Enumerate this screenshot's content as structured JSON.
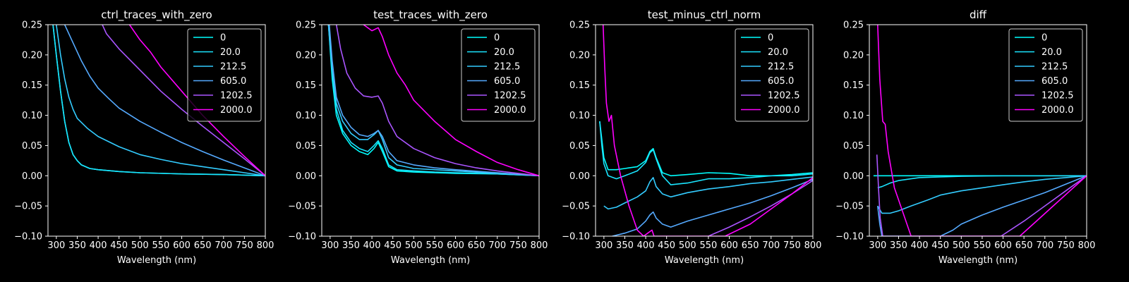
{
  "chart_data": [
    {
      "type": "line",
      "title": "ctrl_traces_with_zero",
      "xlabel": "Wavelength (nm)",
      "ylabel": "",
      "xlim": [
        280,
        800
      ],
      "ylim": [
        -0.1,
        0.25
      ],
      "xticks": [
        "300",
        "350",
        "400",
        "450",
        "500",
        "550",
        "600",
        "650",
        "700",
        "750",
        "800"
      ],
      "yticks": [
        "−0.10",
        "−0.05",
        "0.00",
        "0.05",
        "0.10",
        "0.15",
        "0.20",
        "0.25"
      ],
      "legend_position": "top-right",
      "series": [
        {
          "name": "0",
          "color": "#00ffff",
          "x": [
            292,
            300,
            310,
            320,
            330,
            340,
            350,
            360,
            380,
            400,
            450,
            500,
            600,
            700,
            800
          ],
          "y": [
            0.25,
            0.2,
            0.14,
            0.09,
            0.055,
            0.035,
            0.025,
            0.018,
            0.012,
            0.01,
            0.007,
            0.005,
            0.003,
            0.002,
            0.0
          ]
        },
        {
          "name": "20.0",
          "color": "#1ae5ff",
          "x": [
            292,
            300,
            310,
            320,
            330,
            340,
            350,
            360,
            380,
            400,
            450,
            500,
            600,
            700,
            800
          ],
          "y": [
            0.25,
            0.2,
            0.14,
            0.09,
            0.055,
            0.035,
            0.025,
            0.018,
            0.012,
            0.01,
            0.007,
            0.005,
            0.003,
            0.002,
            0.0
          ]
        },
        {
          "name": "212.5",
          "color": "#33ccff",
          "x": [
            300,
            310,
            320,
            330,
            340,
            350,
            375,
            400,
            450,
            500,
            550,
            600,
            650,
            700,
            750,
            800
          ],
          "y": [
            0.25,
            0.2,
            0.16,
            0.13,
            0.11,
            0.095,
            0.078,
            0.065,
            0.048,
            0.035,
            0.027,
            0.02,
            0.015,
            0.01,
            0.005,
            0.0
          ]
        },
        {
          "name": "605.0",
          "color": "#55aaff",
          "x": [
            320,
            340,
            360,
            380,
            400,
            425,
            450,
            500,
            550,
            600,
            650,
            700,
            750,
            800
          ],
          "y": [
            0.25,
            0.22,
            0.19,
            0.165,
            0.145,
            0.128,
            0.112,
            0.09,
            0.072,
            0.055,
            0.04,
            0.026,
            0.013,
            0.0
          ]
        },
        {
          "name": "1202.5",
          "color": "#aa55ff",
          "x": [
            410,
            420,
            450,
            500,
            550,
            600,
            650,
            700,
            750,
            800
          ],
          "y": [
            0.25,
            0.235,
            0.21,
            0.175,
            0.14,
            0.11,
            0.082,
            0.055,
            0.028,
            0.0
          ]
        },
        {
          "name": "2000.0",
          "color": "#ff00ff",
          "x": [
            475,
            500,
            525,
            550,
            600,
            650,
            700,
            750,
            800
          ],
          "y": [
            0.25,
            0.225,
            0.205,
            0.18,
            0.14,
            0.1,
            0.065,
            0.032,
            0.0
          ]
        }
      ]
    },
    {
      "type": "line",
      "title": "test_traces_with_zero",
      "xlabel": "Wavelength (nm)",
      "ylabel": "",
      "xlim": [
        280,
        800
      ],
      "ylim": [
        -0.1,
        0.25
      ],
      "xticks": [
        "300",
        "350",
        "400",
        "450",
        "500",
        "550",
        "600",
        "650",
        "700",
        "750",
        "800"
      ],
      "yticks": [
        "−0.10",
        "−0.05",
        "0.00",
        "0.05",
        "0.10",
        "0.15",
        "0.20",
        "0.25"
      ],
      "legend_position": "top-right",
      "series": [
        {
          "name": "0",
          "color": "#00ffff",
          "x": [
            296,
            305,
            315,
            330,
            350,
            370,
            390,
            405,
            415,
            425,
            440,
            460,
            500,
            550,
            600,
            700,
            800
          ],
          "y": [
            0.25,
            0.16,
            0.1,
            0.07,
            0.05,
            0.04,
            0.035,
            0.045,
            0.055,
            0.04,
            0.015,
            0.008,
            0.006,
            0.005,
            0.004,
            0.003,
            0.0
          ]
        },
        {
          "name": "20.0",
          "color": "#1ae5ff",
          "x": [
            296,
            305,
            315,
            330,
            350,
            370,
            390,
            405,
            415,
            425,
            440,
            460,
            500,
            550,
            600,
            700,
            800
          ],
          "y": [
            0.25,
            0.17,
            0.11,
            0.075,
            0.055,
            0.045,
            0.04,
            0.05,
            0.058,
            0.045,
            0.018,
            0.01,
            0.008,
            0.006,
            0.005,
            0.003,
            0.0
          ]
        },
        {
          "name": "212.5",
          "color": "#33ccff",
          "x": [
            296,
            305,
            315,
            330,
            350,
            370,
            390,
            405,
            415,
            425,
            440,
            460,
            500,
            550,
            600,
            700,
            800
          ],
          "y": [
            0.25,
            0.18,
            0.12,
            0.09,
            0.07,
            0.06,
            0.06,
            0.068,
            0.075,
            0.06,
            0.03,
            0.018,
            0.012,
            0.01,
            0.008,
            0.004,
            0.0
          ]
        },
        {
          "name": "605.0",
          "color": "#55aaff",
          "x": [
            298,
            305,
            315,
            330,
            350,
            370,
            390,
            405,
            415,
            425,
            440,
            460,
            500,
            550,
            600,
            700,
            800
          ],
          "y": [
            0.25,
            0.19,
            0.13,
            0.1,
            0.08,
            0.068,
            0.065,
            0.07,
            0.075,
            0.065,
            0.04,
            0.025,
            0.018,
            0.013,
            0.01,
            0.005,
            0.0
          ]
        },
        {
          "name": "1202.5",
          "color": "#aa55ff",
          "x": [
            315,
            325,
            340,
            360,
            380,
            400,
            415,
            425,
            440,
            460,
            500,
            550,
            600,
            650,
            700,
            750,
            800
          ],
          "y": [
            0.25,
            0.21,
            0.17,
            0.145,
            0.132,
            0.13,
            0.132,
            0.12,
            0.09,
            0.065,
            0.045,
            0.03,
            0.02,
            0.013,
            0.008,
            0.004,
            0.0
          ]
        },
        {
          "name": "2000.0",
          "color": "#ff00ff",
          "x": [
            380,
            400,
            415,
            425,
            440,
            460,
            480,
            500,
            550,
            600,
            650,
            700,
            750,
            800
          ],
          "y": [
            0.25,
            0.24,
            0.245,
            0.23,
            0.2,
            0.17,
            0.15,
            0.125,
            0.09,
            0.06,
            0.04,
            0.022,
            0.01,
            0.0
          ]
        }
      ]
    },
    {
      "type": "line",
      "title": "test_minus_ctrl_norm",
      "xlabel": "Wavelength (nm)",
      "ylabel": "",
      "xlim": [
        280,
        800
      ],
      "ylim": [
        -0.1,
        0.25
      ],
      "xticks": [
        "300",
        "350",
        "400",
        "450",
        "500",
        "550",
        "600",
        "650",
        "700",
        "750",
        "800"
      ],
      "yticks": [
        "−0.10",
        "−0.05",
        "0.00",
        "0.05",
        "0.10",
        "0.15",
        "0.20",
        "0.25"
      ],
      "legend_position": "top-right",
      "series": [
        {
          "name": "0",
          "color": "#00ffff",
          "x": [
            290,
            295,
            300,
            310,
            330,
            350,
            380,
            400,
            410,
            418,
            425,
            440,
            460,
            500,
            550,
            600,
            650,
            700,
            750,
            800
          ],
          "y": [
            0.09,
            0.06,
            0.03,
            0.01,
            0.01,
            0.012,
            0.015,
            0.025,
            0.04,
            0.045,
            0.03,
            0.005,
            0.0,
            0.002,
            0.005,
            0.004,
            0.0,
            0.0,
            0.002,
            0.005
          ]
        },
        {
          "name": "20.0",
          "color": "#1ae5ff",
          "x": [
            290,
            295,
            300,
            310,
            330,
            350,
            380,
            400,
            410,
            418,
            425,
            440,
            460,
            500,
            550,
            600,
            650,
            700,
            750,
            800
          ],
          "y": [
            0.09,
            0.05,
            0.02,
            0.0,
            -0.005,
            0.0,
            0.008,
            0.022,
            0.038,
            0.043,
            0.028,
            0.0,
            -0.015,
            -0.012,
            -0.005,
            -0.005,
            -0.003,
            0.0,
            0.0,
            0.003
          ]
        },
        {
          "name": "212.5",
          "color": "#33ccff",
          "x": [
            300,
            310,
            330,
            350,
            380,
            400,
            410,
            418,
            425,
            440,
            460,
            500,
            550,
            600,
            650,
            700,
            750,
            800
          ],
          "y": [
            -0.05,
            -0.055,
            -0.052,
            -0.045,
            -0.035,
            -0.025,
            -0.01,
            -0.003,
            -0.018,
            -0.03,
            -0.035,
            -0.028,
            -0.022,
            -0.018,
            -0.013,
            -0.01,
            -0.006,
            -0.002
          ]
        },
        {
          "name": "605.0",
          "color": "#55aaff",
          "x": [
            320,
            350,
            380,
            400,
            410,
            418,
            425,
            440,
            460,
            500,
            550,
            600,
            650,
            700,
            750,
            800
          ],
          "y": [
            -0.1,
            -0.095,
            -0.088,
            -0.075,
            -0.065,
            -0.06,
            -0.07,
            -0.08,
            -0.085,
            -0.075,
            -0.065,
            -0.055,
            -0.045,
            -0.033,
            -0.02,
            -0.006
          ]
        },
        {
          "name": "1202.5",
          "color": "#aa55ff",
          "x": [
            550,
            600,
            650,
            700,
            750,
            800
          ],
          "y": [
            -0.1,
            -0.085,
            -0.068,
            -0.05,
            -0.03,
            -0.008
          ]
        },
        {
          "name": "2000.0",
          "color": "#ff00ff",
          "x": [
            298,
            302,
            306,
            312,
            318,
            325,
            340,
            360,
            380,
            395,
            405,
            415,
            420,
            590,
            650,
            700,
            750,
            800
          ],
          "y": [
            0.25,
            0.18,
            0.12,
            0.09,
            0.1,
            0.05,
            0.0,
            -0.05,
            -0.09,
            -0.1,
            -0.095,
            -0.09,
            -0.1,
            -0.1,
            -0.08,
            -0.055,
            -0.03,
            -0.003
          ]
        }
      ]
    },
    {
      "type": "line",
      "title": "diff",
      "xlabel": "Wavelength (nm)",
      "ylabel": "",
      "xlim": [
        280,
        800
      ],
      "ylim": [
        -0.1,
        0.25
      ],
      "xticks": [
        "300",
        "350",
        "400",
        "450",
        "500",
        "550",
        "600",
        "650",
        "700",
        "750",
        "800"
      ],
      "yticks": [
        "−0.10",
        "−0.05",
        "0.00",
        "0.05",
        "0.10",
        "0.15",
        "0.20",
        "0.25"
      ],
      "legend_position": "top-right",
      "series": [
        {
          "name": "0",
          "color": "#00ffff",
          "x": [
            290,
            800
          ],
          "y": [
            0.0,
            0.0
          ]
        },
        {
          "name": "20.0",
          "color": "#1ae5ff",
          "x": [
            300,
            310,
            330,
            350,
            380,
            400,
            450,
            500,
            600,
            700,
            800
          ],
          "y": [
            -0.02,
            -0.018,
            -0.012,
            -0.008,
            -0.005,
            -0.003,
            -0.002,
            -0.001,
            0.0,
            0.0,
            0.0
          ]
        },
        {
          "name": "212.5",
          "color": "#33ccff",
          "x": [
            300,
            310,
            330,
            350,
            380,
            400,
            420,
            450,
            500,
            550,
            600,
            650,
            700,
            750,
            800
          ],
          "y": [
            -0.05,
            -0.062,
            -0.062,
            -0.058,
            -0.05,
            -0.045,
            -0.04,
            -0.032,
            -0.025,
            -0.02,
            -0.015,
            -0.01,
            -0.006,
            -0.003,
            0.0
          ]
        },
        {
          "name": "605.0",
          "color": "#55aaff",
          "x": [
            300,
            305,
            310,
            450,
            480,
            500,
            550,
            600,
            650,
            700,
            750,
            800
          ],
          "y": [
            -0.05,
            -0.08,
            -0.1,
            -0.1,
            -0.09,
            -0.08,
            -0.065,
            -0.052,
            -0.04,
            -0.028,
            -0.014,
            0.0
          ]
        },
        {
          "name": "1202.5",
          "color": "#aa55ff",
          "x": [
            298,
            302,
            306,
            312,
            595,
            650,
            700,
            750,
            800
          ],
          "y": [
            0.035,
            -0.02,
            -0.07,
            -0.1,
            -0.1,
            -0.075,
            -0.05,
            -0.025,
            0.0
          ]
        },
        {
          "name": "2000.0",
          "color": "#ff00ff",
          "x": [
            300,
            305,
            312,
            318,
            325,
            340,
            360,
            380,
            640,
            680,
            720,
            760,
            800
          ],
          "y": [
            0.25,
            0.16,
            0.09,
            0.085,
            0.04,
            -0.02,
            -0.06,
            -0.1,
            -0.1,
            -0.075,
            -0.05,
            -0.025,
            0.0
          ]
        }
      ]
    }
  ]
}
